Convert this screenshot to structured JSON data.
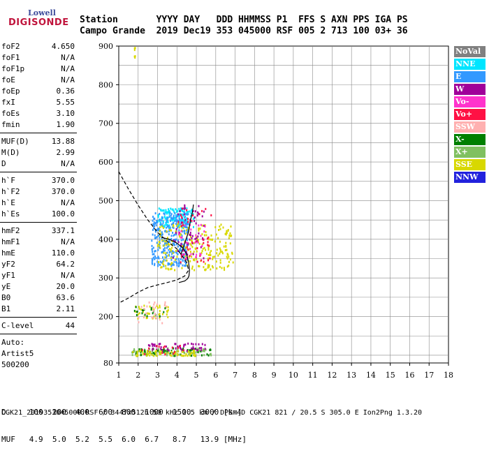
{
  "logo": {
    "line1": "Lowell",
    "line2": "DIGISONDE"
  },
  "header": {
    "labels": "Station       YYYY DAY   DDD HHMMSS P1  FFS S AXN PPS IGA PS",
    "values": "Campo Grande  2019 Dec19 353 045000 RSF 005 2 713 100 03+ 36"
  },
  "params": [
    {
      "name": "foF2",
      "value": "4.650"
    },
    {
      "name": "foF1",
      "value": "N/A"
    },
    {
      "name": "foF1p",
      "value": "N/A"
    },
    {
      "name": "foE",
      "value": "N/A"
    },
    {
      "name": "foEp",
      "value": "0.36"
    },
    {
      "name": "fxI",
      "value": "5.55"
    },
    {
      "name": "foEs",
      "value": "3.10"
    },
    {
      "name": "fmin",
      "value": "1.90"
    },
    {
      "name": "MUF(D)",
      "value": "13.88"
    },
    {
      "name": "M(D)",
      "value": "2.99"
    },
    {
      "name": "D",
      "value": "N/A"
    },
    {
      "name": "h`F",
      "value": "370.0"
    },
    {
      "name": "h`F2",
      "value": "370.0"
    },
    {
      "name": "h`E",
      "value": "N/A"
    },
    {
      "name": "h`Es",
      "value": "100.0"
    },
    {
      "name": "hmF2",
      "value": "337.1"
    },
    {
      "name": "hmF1",
      "value": "N/A"
    },
    {
      "name": "hmE",
      "value": "110.0"
    },
    {
      "name": "yF2",
      "value": "64.2"
    },
    {
      "name": "yF1",
      "value": "N/A"
    },
    {
      "name": "yE",
      "value": "20.0"
    },
    {
      "name": "B0",
      "value": "63.6"
    },
    {
      "name": "B1",
      "value": "2.11"
    },
    {
      "name": "C-level",
      "value": "44"
    }
  ],
  "auto": {
    "line1": "Auto:",
    "line2": "Artist5",
    "line3": "500200"
  },
  "legend": [
    {
      "label": "NoVal",
      "color": "#808080"
    },
    {
      "label": "NNE",
      "color": "#00e5ff"
    },
    {
      "label": "E",
      "color": "#3399ff"
    },
    {
      "label": "W",
      "color": "#a0009a"
    },
    {
      "label": "Vo-",
      "color": "#ff33cc"
    },
    {
      "label": "Vo+",
      "color": "#ff1144"
    },
    {
      "label": "SSW",
      "color": "#ffb0b0"
    },
    {
      "label": "X-",
      "color": "#008000"
    },
    {
      "label": "X+",
      "color": "#80c060"
    },
    {
      "label": "SSE",
      "color": "#d8d800"
    },
    {
      "label": "NNW",
      "color": "#2222dd"
    }
  ],
  "bottom": {
    "row_d": "D     100  200  400  600  800  1000  1500  3000 [km]",
    "row_muf": "MUF   4.9  5.0  5.2  5.5  6.0  6.7   8.7   13.9 [MHz]"
  },
  "footer": "CGK21_2019353045000.RSF / 344fx512h 50 kHz 2.5 km / DPS-4D CGK21 821 / 20.5 S 305.0 E Ion2Png 1.3.20",
  "chart_data": {
    "type": "scatter",
    "xlim": [
      1,
      18
    ],
    "ylim": [
      80,
      900
    ],
    "x_ticks": [
      1,
      2,
      3,
      4,
      5,
      6,
      7,
      8,
      9,
      10,
      11,
      12,
      13,
      14,
      15,
      16,
      17,
      18
    ],
    "y_ticks": [
      80,
      200,
      300,
      400,
      500,
      600,
      700,
      800,
      900
    ],
    "grid": true,
    "legend_placement": "right",
    "clusters": [
      {
        "name": "NNE",
        "x": [
          3.0,
          4.9
        ],
        "y": [
          430,
          480
        ],
        "n": 150
      },
      {
        "name": "E",
        "x": [
          2.7,
          4.6
        ],
        "y": [
          330,
          470
        ],
        "n": 320
      },
      {
        "name": "SSE",
        "x": [
          3.0,
          6.9
        ],
        "y": [
          320,
          440
        ],
        "n": 230
      },
      {
        "name": "W",
        "x": [
          3.8,
          5.4
        ],
        "y": [
          350,
          500
        ],
        "n": 60
      },
      {
        "name": "Vo+",
        "x": [
          4.0,
          5.8
        ],
        "y": [
          340,
          480
        ],
        "n": 40
      },
      {
        "name": "Vo-",
        "x": [
          4.0,
          5.5
        ],
        "y": [
          350,
          440
        ],
        "n": 30
      },
      {
        "name": "SSE",
        "x": [
          1.8,
          3.6
        ],
        "y": [
          195,
          230
        ],
        "n": 40
      },
      {
        "name": "X-",
        "x": [
          1.8,
          3.6
        ],
        "y": [
          200,
          225
        ],
        "n": 20
      },
      {
        "name": "SSW",
        "x": [
          2.0,
          3.5
        ],
        "y": [
          180,
          240
        ],
        "n": 25
      },
      {
        "name": "X+",
        "x": [
          1.7,
          5.8
        ],
        "y": [
          98,
          118
        ],
        "n": 90
      },
      {
        "name": "X-",
        "x": [
          1.7,
          5.8
        ],
        "y": [
          98,
          118
        ],
        "n": 60
      },
      {
        "name": "W",
        "x": [
          2.5,
          5.6
        ],
        "y": [
          110,
          130
        ],
        "n": 50
      },
      {
        "name": "SSE",
        "x": [
          1.7,
          5.0
        ],
        "y": [
          98,
          112
        ],
        "n": 60
      },
      {
        "name": "Vo+",
        "x": [
          2.0,
          4.5
        ],
        "y": [
          100,
          125
        ],
        "n": 15
      },
      {
        "name": "SSE",
        "x": [
          1.8,
          1.9
        ],
        "y": [
          860,
          895
        ],
        "n": 6
      }
    ],
    "profile_dashed": [
      [
        1.0,
        575
      ],
      [
        1.5,
        530
      ],
      [
        2.0,
        488
      ],
      [
        2.5,
        450
      ],
      [
        3.0,
        418
      ],
      [
        3.5,
        395
      ],
      [
        4.0,
        375
      ],
      [
        4.3,
        355
      ],
      [
        4.5,
        340
      ],
      [
        4.6,
        320
      ],
      [
        4.4,
        305
      ],
      [
        4.0,
        295
      ],
      [
        3.5,
        288
      ],
      [
        3.0,
        282
      ],
      [
        2.5,
        275
      ],
      [
        2.0,
        263
      ],
      [
        1.5,
        248
      ],
      [
        1.0,
        235
      ]
    ],
    "trace_solid": [
      [
        3.2,
        405
      ],
      [
        3.6,
        400
      ],
      [
        4.0,
        390
      ],
      [
        4.3,
        378
      ],
      [
        4.5,
        362
      ],
      [
        4.6,
        340
      ],
      [
        4.65,
        320
      ],
      [
        4.62,
        305
      ],
      [
        4.55,
        298
      ],
      [
        4.4,
        292
      ],
      [
        4.1,
        288
      ]
    ],
    "trace_solid2": [
      [
        4.2,
        360
      ],
      [
        4.4,
        390
      ],
      [
        4.6,
        420
      ],
      [
        4.7,
        450
      ],
      [
        4.8,
        470
      ],
      [
        4.85,
        490
      ]
    ]
  }
}
